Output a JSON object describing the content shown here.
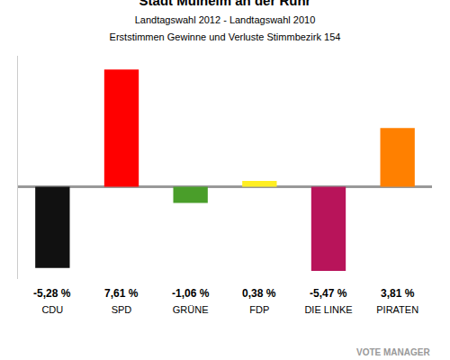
{
  "chart_data": {
    "type": "bar",
    "title": "Stadt Mülheim an der Ruhr",
    "subtitle": [
      "Landtagswahl 2012 - Landtagswahl 2010",
      "Erststimmen Gewinne und Verluste Stimmbezirk 154"
    ],
    "categories": [
      "CDU",
      "SPD",
      "GRÜNE",
      "FDP",
      "DIE LINKE",
      "PIRATEN"
    ],
    "values": [
      -5.28,
      7.61,
      -1.06,
      0.38,
      -5.47,
      3.81
    ],
    "value_labels": [
      "-5,28 %",
      "7,61 %",
      "-1,06 %",
      "0,38 %",
      "-5,47 %",
      "3,81 %"
    ],
    "colors": [
      "#111111",
      "#ff0000",
      "#4a9e2a",
      "#ffee22",
      "#b8145a",
      "#ff8000"
    ],
    "data_labels": true,
    "tick_labels": "x",
    "ylim": [
      -6,
      8.5
    ],
    "yticks": [
      0
    ],
    "grid": false,
    "source": "VOTE MANAGER"
  }
}
